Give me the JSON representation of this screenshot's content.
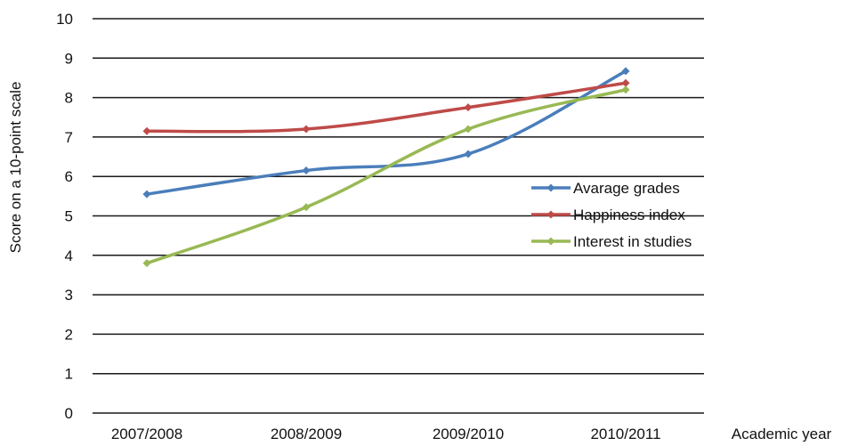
{
  "chart_data": {
    "type": "line",
    "title": "",
    "xlabel": "Academic year",
    "ylabel": "Score on a 10-point scale",
    "ylim": [
      0,
      10
    ],
    "yticks": [
      "0",
      "1",
      "2",
      "3",
      "4",
      "5",
      "6",
      "7",
      "8",
      "9",
      "10"
    ],
    "categories": [
      "2007/2008",
      "2008/2009",
      "2009/2010",
      "2010/2011"
    ],
    "grid": "horizontal",
    "legend_position": "right",
    "series": [
      {
        "name": "Avarage grades",
        "color": "#4a7ebb",
        "values": [
          5.55,
          6.15,
          6.57,
          8.67
        ]
      },
      {
        "name": "Happiness index",
        "color": "#be4b48",
        "values": [
          7.15,
          7.2,
          7.75,
          8.37
        ]
      },
      {
        "name": "Interest in studies",
        "color": "#98b954",
        "values": [
          3.8,
          5.22,
          7.2,
          8.2
        ]
      }
    ]
  }
}
